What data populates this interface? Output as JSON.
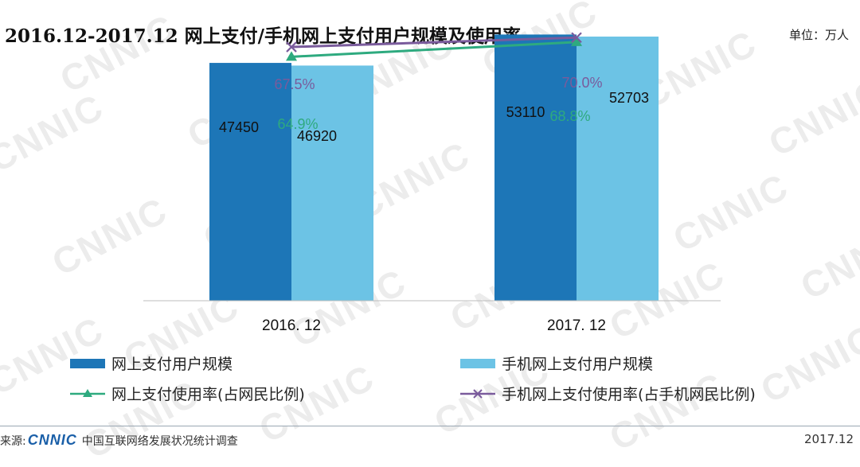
{
  "header": {
    "title": "2016.12-2017.12 网上支付/手机网上支付用户规模及使用率",
    "unit": "单位：万人"
  },
  "chart_data": {
    "type": "bar",
    "title": "2016.12-2017.12 网上支付/手机网上支付用户规模及使用率",
    "categories": [
      "2016. 12",
      "2017. 12"
    ],
    "series": [
      {
        "name": "网上支付用户规模",
        "kind": "bar",
        "color": "#1d76b7",
        "values": [
          47450,
          53110
        ],
        "labels": [
          "47450",
          "53110"
        ]
      },
      {
        "name": "手机网上支付用户规模",
        "kind": "bar",
        "color": "#6cc3e5",
        "values": [
          46920,
          52703
        ],
        "labels": [
          "46920",
          "52703"
        ]
      },
      {
        "name": "网上支付使用率(占网民比例)",
        "kind": "line",
        "marker": "triangle",
        "color": "#2eaa7f",
        "values": [
          64.9,
          68.8
        ],
        "labels": [
          "64.9%",
          "68.8%"
        ]
      },
      {
        "name": "手机网上支付使用率(占手机网民比例)",
        "kind": "line",
        "marker": "x",
        "color": "#7a5b9c",
        "values": [
          67.5,
          70.0
        ],
        "labels": [
          "67.5%",
          "70.0%"
        ]
      }
    ],
    "ylim": [
      0,
      60000
    ],
    "y2lim": [
      0,
      80
    ],
    "grid": false,
    "legend": "bottom"
  },
  "legend": [
    {
      "label": "网上支付用户规模"
    },
    {
      "label": "手机网上支付用户规模"
    },
    {
      "label": "网上支付使用率(占网民比例)"
    },
    {
      "label": "手机网上支付使用率(占手机网民比例)"
    }
  ],
  "footer": {
    "source_label": "来源:",
    "logo": "CNNIC",
    "source_text": "中国互联网络发展状况统计调查",
    "date": "2017.12"
  },
  "watermark": "CNNIC"
}
